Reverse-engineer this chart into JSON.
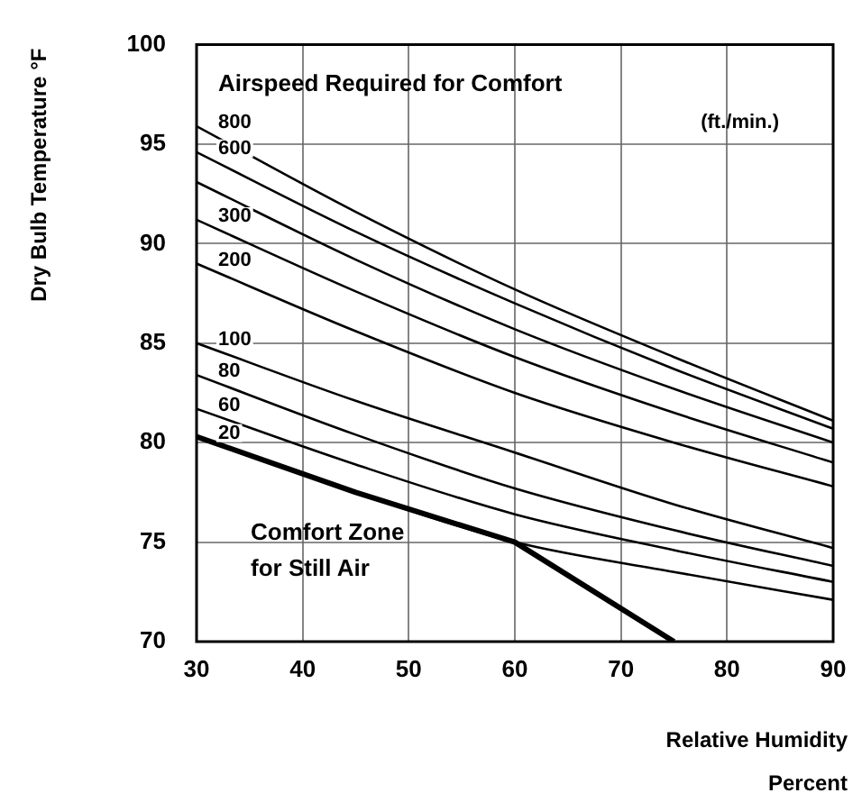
{
  "chart_data": {
    "type": "line",
    "xlabel": "Relative Humidity\nPercent",
    "ylabel": "Dry Bulb Temperature °F",
    "annotations": [
      "Airspeed Required for Comfort",
      "(ft./min.)",
      "Comfort Zone\nfor Still Air"
    ],
    "x": [
      30,
      45,
      60,
      75,
      90
    ],
    "series": [
      {
        "name": "800",
        "color": "#000000",
        "values": [
          95.9,
          91.6,
          87.7,
          84.3,
          81.1
        ]
      },
      {
        "name": "600",
        "color": "#000000",
        "values": [
          94.6,
          90.6,
          87.0,
          83.7,
          80.7
        ]
      },
      {
        "color": "#000000",
        "values": [
          93.1,
          89.2,
          85.7,
          82.7,
          80.0
        ]
      },
      {
        "name": "300",
        "color": "#000000",
        "values": [
          91.2,
          87.6,
          84.3,
          81.5,
          79.0
        ]
      },
      {
        "name": "200",
        "color": "#000000",
        "values": [
          89.0,
          85.6,
          82.5,
          80.0,
          77.8
        ]
      },
      {
        "name": "100",
        "color": "#000000",
        "values": [
          85.0,
          82.1,
          79.5,
          76.9,
          74.7
        ]
      },
      {
        "name": "80",
        "color": "#000000",
        "values": [
          83.4,
          80.4,
          77.7,
          75.6,
          73.8
        ]
      },
      {
        "name": "60",
        "color": "#000000",
        "values": [
          81.7,
          78.9,
          76.4,
          74.6,
          73.0
        ]
      },
      {
        "name": "20",
        "color": "#000000",
        "values": [
          80.3,
          77.5,
          75.0,
          73.5,
          72.1
        ]
      },
      {
        "color": "#000000",
        "x": [
          30,
          45,
          60,
          75
        ],
        "values": [
          80.3,
          77.5,
          75.0,
          70.0
        ]
      }
    ],
    "xlim": [
      30,
      90
    ],
    "xticks": [
      30,
      40,
      50,
      60,
      70,
      80,
      90
    ],
    "ylim": [
      70,
      100
    ],
    "yticks": [
      70,
      75,
      80,
      85,
      90,
      95,
      100
    ],
    "grid": true,
    "legend": false,
    "marker": "none",
    "line_style": "solid"
  }
}
